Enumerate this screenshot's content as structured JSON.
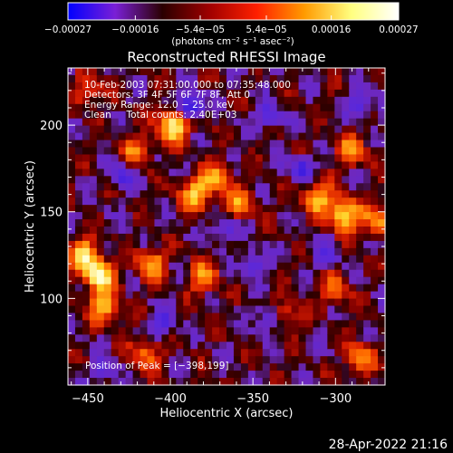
{
  "chart_data": {
    "type": "heatmap",
    "title": "Reconstructed RHESSI Image",
    "xlabel": "Heliocentric X (arcsec)",
    "ylabel": "Heliocentric Y (arcsec)",
    "xlim": [
      -462,
      -270
    ],
    "ylim": [
      50,
      233
    ],
    "xticks": [
      -450,
      -400,
      -350,
      -300
    ],
    "xtick_labels": [
      "−450",
      "−400",
      "−350",
      "−300"
    ],
    "yticks": [
      100,
      150,
      200
    ],
    "ytick_labels": [
      "100",
      "150",
      "200"
    ],
    "colorbar": {
      "min": -0.00027,
      "max": 0.00027,
      "ticks": [
        -0.00027,
        -0.00016,
        -5.4e-05,
        5.4e-05,
        0.00016,
        0.00027
      ],
      "tick_labels": [
        "−0.00027",
        "−0.00016",
        "−5.4e−05",
        "5.4e−05",
        "0.00016",
        "0.00027"
      ],
      "units_label": "(photons cm⁻² s⁻¹ asec⁻²)",
      "colors": [
        "#0000ff",
        "#7a1fd6",
        "#2a0000",
        "#a00000",
        "#ff2000",
        "#ff9a00",
        "#ffff80",
        "#ffffff"
      ]
    },
    "annotations": [
      "10-Feb-2003 07:31:00.000 to 07:35:48.000",
      "Detectors: 3F 4F 5F 6F 7F 8F, Att 0",
      "Energy Range: 12.0 − 25.0 keV",
      "Clean     Total counts: 2.40E+03"
    ],
    "peak_label": "Position of Peak = [−398,199]",
    "peak": [
      -398,
      199
    ],
    "hot_spots": [
      {
        "x": -398,
        "y": 200,
        "strength": 1.0
      },
      {
        "x": -443,
        "y": 113,
        "strength": 0.95
      },
      {
        "x": -452,
        "y": 125,
        "strength": 0.8
      },
      {
        "x": -440,
        "y": 95,
        "strength": 0.7
      },
      {
        "x": -295,
        "y": 148,
        "strength": 0.9
      },
      {
        "x": -310,
        "y": 158,
        "strength": 0.7
      },
      {
        "x": -275,
        "y": 145,
        "strength": 0.6
      },
      {
        "x": -385,
        "y": 160,
        "strength": 0.75
      },
      {
        "x": -372,
        "y": 170,
        "strength": 0.6
      },
      {
        "x": -358,
        "y": 155,
        "strength": 0.5
      },
      {
        "x": -412,
        "y": 120,
        "strength": 0.65
      },
      {
        "x": -380,
        "y": 112,
        "strength": 0.55
      },
      {
        "x": -420,
        "y": 185,
        "strength": 0.5
      },
      {
        "x": -290,
        "y": 185,
        "strength": 0.55
      },
      {
        "x": -300,
        "y": 105,
        "strength": 0.5
      },
      {
        "x": -450,
        "y": 220,
        "strength": 0.45
      },
      {
        "x": -415,
        "y": 68,
        "strength": 0.5
      },
      {
        "x": -285,
        "y": 65,
        "strength": 0.55
      },
      {
        "x": -330,
        "y": 90,
        "strength": 0.45
      }
    ],
    "cold_spots": [
      {
        "x": -388,
        "y": 210,
        "strength": 0.95
      },
      {
        "x": -340,
        "y": 205,
        "strength": 0.6
      },
      {
        "x": -320,
        "y": 175,
        "strength": 0.6
      },
      {
        "x": -305,
        "y": 125,
        "strength": 0.5
      },
      {
        "x": -350,
        "y": 120,
        "strength": 0.55
      },
      {
        "x": -340,
        "y": 88,
        "strength": 0.6
      },
      {
        "x": -405,
        "y": 85,
        "strength": 0.55
      },
      {
        "x": -430,
        "y": 170,
        "strength": 0.5
      },
      {
        "x": -285,
        "y": 212,
        "strength": 0.55
      },
      {
        "x": -440,
        "y": 58,
        "strength": 0.45
      },
      {
        "x": -367,
        "y": 140,
        "strength": 0.45
      }
    ]
  },
  "timestamp": "28-Apr-2022 21:16"
}
